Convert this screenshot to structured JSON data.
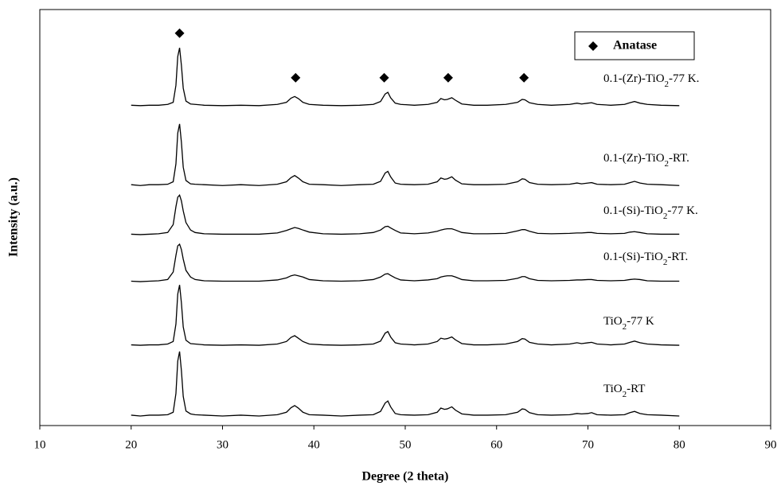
{
  "chart_data": {
    "type": "line",
    "xlabel": "Degree (2 theta)",
    "ylabel": "Intensity (a.u.)",
    "xlim": [
      10,
      90
    ],
    "xticks": [
      10,
      20,
      30,
      40,
      50,
      60,
      70,
      80,
      90
    ],
    "ylim": [
      0,
      100
    ],
    "x": [
      20,
      21,
      22,
      23,
      24,
      24.6,
      24.9,
      25.1,
      25.3,
      25.5,
      25.7,
      26,
      26.5,
      27,
      28,
      30,
      32,
      34,
      36,
      37,
      37.5,
      37.9,
      38.3,
      38.8,
      39.5,
      41,
      43,
      45,
      46.5,
      47.3,
      47.8,
      48.1,
      48.4,
      48.9,
      49.5,
      51,
      52.5,
      53.5,
      53.9,
      54.3,
      54.6,
      55.1,
      55.5,
      56.2,
      57.5,
      59,
      61,
      62.3,
      62.8,
      63.1,
      63.6,
      64.5,
      66,
      68,
      68.8,
      69.3,
      70,
      70.4,
      71,
      72.5,
      74,
      74.6,
      75.1,
      75.7,
      76.5,
      78,
      80
    ],
    "series": [
      {
        "name": "0.1-(Zr)-TiO2-77 K.",
        "color": "#000000",
        "values": [
          77.0,
          76.9,
          77.0,
          77.0,
          77.2,
          77.7,
          81.8,
          88.7,
          90.8,
          86.6,
          81.1,
          78.0,
          77.3,
          77.2,
          77.0,
          76.9,
          77.0,
          76.9,
          77.2,
          77.7,
          78.7,
          79.1,
          78.6,
          77.7,
          77.2,
          77.0,
          76.9,
          77.0,
          77.2,
          77.9,
          79.7,
          80.1,
          78.8,
          77.5,
          77.2,
          77.0,
          77.2,
          77.7,
          78.6,
          78.3,
          78.4,
          78.8,
          78.2,
          77.3,
          77.0,
          77.0,
          77.2,
          77.7,
          78.4,
          78.3,
          77.6,
          77.2,
          77.0,
          77.2,
          77.5,
          77.3,
          77.5,
          77.6,
          77.2,
          77.0,
          77.2,
          77.6,
          77.9,
          77.5,
          77.2,
          77.0,
          76.9
        ]
      },
      {
        "name": "0.1-(Zr)-TiO2-RT.",
        "color": "#000000",
        "values": [
          57.9,
          57.7,
          57.9,
          57.9,
          58.0,
          58.6,
          62.9,
          70.3,
          72.5,
          68.1,
          62.1,
          58.9,
          58.1,
          58.0,
          57.9,
          57.7,
          57.9,
          57.7,
          58.0,
          58.6,
          59.6,
          60.1,
          59.5,
          58.6,
          58.0,
          57.9,
          57.7,
          57.9,
          58.0,
          58.7,
          60.7,
          61.1,
          59.8,
          58.3,
          58.0,
          57.9,
          58.0,
          58.6,
          59.5,
          59.2,
          59.3,
          59.8,
          59.0,
          58.1,
          57.9,
          57.9,
          58.0,
          58.6,
          59.3,
          59.2,
          58.4,
          58.0,
          57.9,
          58.0,
          58.3,
          58.1,
          58.3,
          58.4,
          58.0,
          57.9,
          58.0,
          58.4,
          58.7,
          58.3,
          58.0,
          57.9,
          57.7
        ]
      },
      {
        "name": "0.1-(Si)-TiO2-77 K.",
        "color": "#000000",
        "values": [
          46.0,
          45.9,
          46.0,
          46.1,
          46.4,
          48.3,
          52.6,
          54.9,
          55.4,
          54.0,
          51.6,
          48.8,
          47.0,
          46.4,
          46.1,
          46.0,
          46.0,
          46.0,
          46.3,
          46.9,
          47.3,
          47.6,
          47.4,
          47.0,
          46.5,
          46.1,
          46.0,
          46.1,
          46.4,
          47.0,
          47.8,
          47.9,
          47.5,
          46.9,
          46.3,
          46.1,
          46.3,
          46.7,
          47.0,
          47.2,
          47.3,
          47.3,
          47.0,
          46.4,
          46.1,
          46.1,
          46.2,
          46.8,
          47.1,
          47.1,
          46.7,
          46.2,
          46.1,
          46.2,
          46.3,
          46.3,
          46.4,
          46.4,
          46.2,
          46.1,
          46.2,
          46.5,
          46.6,
          46.4,
          46.1,
          46.0,
          46.0
        ]
      },
      {
        "name": "0.1-(Si)-TiO2-RT.",
        "color": "#000000",
        "values": [
          34.7,
          34.6,
          34.7,
          34.8,
          35.1,
          36.9,
          40.9,
          43.2,
          43.6,
          42.3,
          40.0,
          37.3,
          35.7,
          35.1,
          34.8,
          34.7,
          34.7,
          34.7,
          35.0,
          35.5,
          36.0,
          36.2,
          36.0,
          35.7,
          35.1,
          34.8,
          34.7,
          34.8,
          35.1,
          35.7,
          36.4,
          36.5,
          36.1,
          35.5,
          35.0,
          34.8,
          35.0,
          35.3,
          35.7,
          35.9,
          36.0,
          36.0,
          35.7,
          35.1,
          34.8,
          34.8,
          34.9,
          35.4,
          35.8,
          35.8,
          35.3,
          34.9,
          34.8,
          34.9,
          35.0,
          35.0,
          35.1,
          35.1,
          34.9,
          34.8,
          34.9,
          35.1,
          35.2,
          35.1,
          34.8,
          34.7,
          34.7
        ]
      },
      {
        "name": "TiO2-77 K",
        "color": "#000000",
        "values": [
          19.4,
          19.3,
          19.4,
          19.4,
          19.6,
          20.2,
          24.4,
          31.6,
          33.8,
          29.5,
          23.7,
          20.5,
          19.7,
          19.6,
          19.4,
          19.3,
          19.4,
          19.3,
          19.6,
          20.2,
          21.2,
          21.6,
          21.0,
          20.2,
          19.6,
          19.4,
          19.3,
          19.4,
          19.6,
          20.3,
          22.2,
          22.6,
          21.3,
          19.9,
          19.6,
          19.4,
          19.6,
          20.2,
          21.0,
          20.8,
          20.9,
          21.3,
          20.6,
          19.7,
          19.4,
          19.4,
          19.6,
          20.2,
          20.9,
          20.8,
          20.0,
          19.6,
          19.4,
          19.6,
          19.9,
          19.7,
          19.9,
          20.0,
          19.6,
          19.4,
          19.6,
          20.0,
          20.3,
          19.9,
          19.6,
          19.4,
          19.3
        ]
      },
      {
        "name": "TiO2-RT",
        "color": "#000000",
        "values": [
          2.5,
          2.3,
          2.5,
          2.5,
          2.6,
          3.2,
          7.7,
          15.5,
          17.8,
          13.2,
          7.0,
          3.5,
          2.8,
          2.6,
          2.5,
          2.3,
          2.5,
          2.3,
          2.6,
          3.2,
          4.3,
          4.8,
          4.2,
          3.2,
          2.6,
          2.5,
          2.3,
          2.5,
          2.6,
          3.4,
          5.4,
          5.9,
          4.5,
          2.9,
          2.6,
          2.5,
          2.6,
          3.2,
          4.2,
          3.9,
          4.0,
          4.5,
          3.7,
          2.8,
          2.5,
          2.5,
          2.6,
          3.2,
          4.0,
          3.9,
          3.1,
          2.6,
          2.5,
          2.6,
          2.9,
          2.8,
          2.9,
          3.1,
          2.6,
          2.5,
          2.6,
          3.1,
          3.4,
          2.9,
          2.6,
          2.5,
          2.3
        ]
      }
    ],
    "markers": {
      "name": "Anatase",
      "color": "#000000",
      "x": [
        25.3,
        38,
        47.7,
        54.7,
        63
      ],
      "y": [
        94.3,
        83.6,
        83.6,
        83.6,
        83.6
      ]
    }
  }
}
